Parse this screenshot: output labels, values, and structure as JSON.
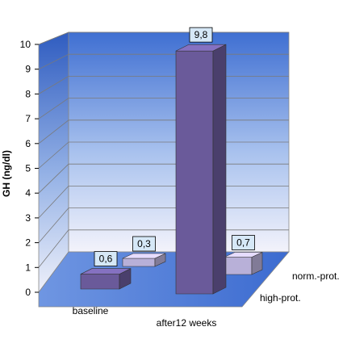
{
  "chart_data": {
    "type": "bar",
    "title": "",
    "xlabel": "",
    "ylabel": "GH (ng/dl)",
    "ylim": [
      0,
      10
    ],
    "yticks": [
      "0",
      "1",
      "2",
      "3",
      "4",
      "5",
      "6",
      "7",
      "8",
      "9",
      "10"
    ],
    "categories": [
      "baseline",
      "after12 weeks"
    ],
    "series": [
      {
        "name": "high-prot.",
        "values": [
          0.6,
          9.8
        ],
        "labels": [
          "0,6",
          "9,8"
        ],
        "color": "#6a5a9a"
      },
      {
        "name": "norm.-prot.",
        "values": [
          0.3,
          0.7
        ],
        "labels": [
          "0,3",
          "0,7"
        ],
        "color": "#b8b0d8"
      }
    ],
    "grid": true,
    "three_d": true
  },
  "colors": {
    "wall_top": "#3f6fd2",
    "wall_bottom": "#f3f3fb",
    "floor": "#4f7fdc",
    "label_box": "#d6e8f7"
  }
}
